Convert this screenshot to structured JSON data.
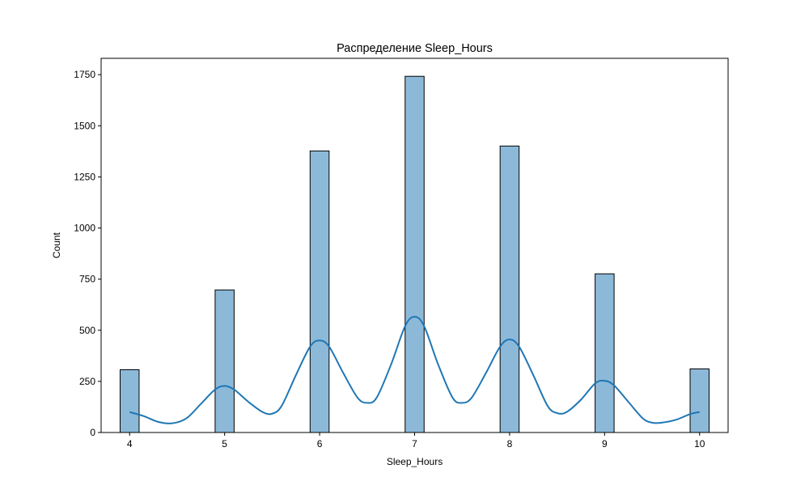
{
  "chart_data": {
    "type": "bar",
    "title": "Распределение Sleep_Hours",
    "xlabel": "Sleep_Hours",
    "ylabel": "Count",
    "xlim": [
      3.7,
      10.3
    ],
    "ylim": [
      0,
      1830
    ],
    "x_ticks": [
      4,
      5,
      6,
      7,
      8,
      9,
      10
    ],
    "y_ticks": [
      0,
      250,
      500,
      750,
      1000,
      1250,
      1500,
      1750
    ],
    "bin_width": 0.2,
    "bars": [
      {
        "x": 4,
        "value": 307
      },
      {
        "x": 5,
        "value": 697
      },
      {
        "x": 6,
        "value": 1377
      },
      {
        "x": 7,
        "value": 1742
      },
      {
        "x": 8,
        "value": 1401
      },
      {
        "x": 9,
        "value": 776
      },
      {
        "x": 10,
        "value": 311
      }
    ],
    "kde": {
      "x": [
        4.0,
        4.15,
        4.3,
        4.45,
        4.6,
        4.75,
        4.9,
        5.0,
        5.1,
        5.25,
        5.4,
        5.5,
        5.6,
        5.75,
        5.9,
        6.0,
        6.1,
        6.25,
        6.4,
        6.5,
        6.6,
        6.75,
        6.9,
        7.0,
        7.1,
        7.25,
        7.4,
        7.5,
        7.6,
        7.75,
        7.9,
        8.0,
        8.1,
        8.25,
        8.4,
        8.5,
        8.6,
        8.75,
        8.9,
        9.0,
        9.1,
        9.25,
        9.4,
        9.5,
        9.6,
        9.75,
        9.9,
        10.0
      ],
      "y": [
        100,
        80,
        52,
        45,
        70,
        140,
        210,
        228,
        210,
        150,
        100,
        92,
        130,
        280,
        420,
        450,
        420,
        290,
        170,
        145,
        170,
        330,
        520,
        566,
        520,
        330,
        170,
        145,
        170,
        290,
        420,
        455,
        420,
        280,
        130,
        95,
        100,
        160,
        240,
        253,
        230,
        150,
        70,
        48,
        48,
        62,
        90,
        100
      ]
    },
    "colors": {
      "bar_fill": "#8db9d9",
      "bar_edge": "#000000",
      "kde_line": "#1f77b4"
    },
    "grid": false,
    "legend": "none"
  }
}
